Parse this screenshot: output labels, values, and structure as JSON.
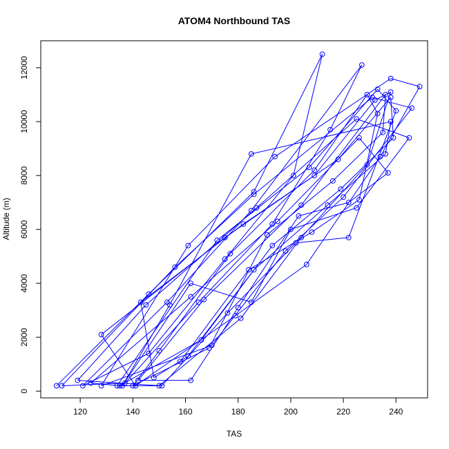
{
  "chart_data": {
    "type": "line",
    "title": "ATOM4 Northbound TAS",
    "xlabel": "TAS",
    "ylabel": "Altitude (m)",
    "xlim": [
      105,
      252
    ],
    "ylim": [
      -250,
      13000
    ],
    "x_ticks": [
      120,
      140,
      160,
      180,
      200,
      220,
      240
    ],
    "y_ticks": [
      0,
      2000,
      4000,
      6000,
      8000,
      10000,
      12000
    ],
    "grid": false,
    "legend": "none",
    "markers": "open-circle",
    "series": [
      {
        "color": "#0000ff",
        "points": [
          {
            "x": 111,
            "y": 200
          },
          {
            "x": 146,
            "y": 3600
          },
          {
            "x": 186,
            "y": 7400
          },
          {
            "x": 212,
            "y": 12500
          },
          {
            "x": 201,
            "y": 8000
          },
          {
            "x": 175,
            "y": 4900
          },
          {
            "x": 146,
            "y": 1400
          },
          {
            "x": 121,
            "y": 200
          },
          {
            "x": 153,
            "y": 3300
          },
          {
            "x": 185,
            "y": 6700
          },
          {
            "x": 227,
            "y": 12100
          },
          {
            "x": 215,
            "y": 9700
          },
          {
            "x": 193,
            "y": 6200
          },
          {
            "x": 165,
            "y": 3300
          },
          {
            "x": 137,
            "y": 300
          },
          {
            "x": 113,
            "y": 200
          },
          {
            "x": 156,
            "y": 4600
          },
          {
            "x": 186,
            "y": 7300
          },
          {
            "x": 231,
            "y": 10900
          },
          {
            "x": 246,
            "y": 10500
          },
          {
            "x": 220,
            "y": 7200
          },
          {
            "x": 198,
            "y": 5200
          },
          {
            "x": 170,
            "y": 1700
          },
          {
            "x": 128,
            "y": 200
          },
          {
            "x": 161,
            "y": 5400
          },
          {
            "x": 194,
            "y": 8700
          },
          {
            "x": 238,
            "y": 11600
          },
          {
            "x": 249,
            "y": 11300
          },
          {
            "x": 234,
            "y": 8700
          },
          {
            "x": 206,
            "y": 4700
          },
          {
            "x": 179,
            "y": 2800
          },
          {
            "x": 141,
            "y": 200
          },
          {
            "x": 128,
            "y": 2100
          },
          {
            "x": 175,
            "y": 5700
          },
          {
            "x": 209,
            "y": 8000
          },
          {
            "x": 232,
            "y": 10800
          },
          {
            "x": 238,
            "y": 11100
          },
          {
            "x": 229,
            "y": 8400
          },
          {
            "x": 204,
            "y": 5700
          },
          {
            "x": 181,
            "y": 2700
          },
          {
            "x": 150,
            "y": 200
          },
          {
            "x": 134,
            "y": 200
          },
          {
            "x": 172,
            "y": 5600
          },
          {
            "x": 207,
            "y": 8300
          },
          {
            "x": 233,
            "y": 11200
          },
          {
            "x": 240,
            "y": 10400
          },
          {
            "x": 222,
            "y": 5700
          },
          {
            "x": 202,
            "y": 5500
          },
          {
            "x": 176,
            "y": 2900
          },
          {
            "x": 151,
            "y": 200
          },
          {
            "x": 119,
            "y": 400
          },
          {
            "x": 145,
            "y": 3200
          },
          {
            "x": 187,
            "y": 6800
          },
          {
            "x": 225,
            "y": 10100
          },
          {
            "x": 245,
            "y": 9400
          },
          {
            "x": 225,
            "y": 6800
          },
          {
            "x": 200,
            "y": 6000
          },
          {
            "x": 185,
            "y": 3300
          },
          {
            "x": 162,
            "y": 4000
          },
          {
            "x": 136,
            "y": 200
          },
          {
            "x": 154,
            "y": 3200
          },
          {
            "x": 185,
            "y": 8800
          },
          {
            "x": 238,
            "y": 10000
          },
          {
            "x": 236,
            "y": 8800
          },
          {
            "x": 214,
            "y": 6900
          },
          {
            "x": 186,
            "y": 4500
          },
          {
            "x": 161,
            "y": 1300
          },
          {
            "x": 148,
            "y": 500
          },
          {
            "x": 143,
            "y": 3300
          },
          {
            "x": 182,
            "y": 6200
          },
          {
            "x": 218,
            "y": 8600
          },
          {
            "x": 238,
            "y": 10900
          },
          {
            "x": 239,
            "y": 9400
          },
          {
            "x": 219,
            "y": 7500
          },
          {
            "x": 193,
            "y": 5400
          },
          {
            "x": 166,
            "y": 1900
          },
          {
            "x": 135,
            "y": 200
          },
          {
            "x": 124,
            "y": 300
          },
          {
            "x": 162,
            "y": 3500
          },
          {
            "x": 195,
            "y": 6300
          },
          {
            "x": 226,
            "y": 9400
          },
          {
            "x": 237,
            "y": 8100
          },
          {
            "x": 222,
            "y": 7000
          },
          {
            "x": 203,
            "y": 6500
          },
          {
            "x": 180,
            "y": 3100
          },
          {
            "x": 162,
            "y": 400
          },
          {
            "x": 142,
            "y": 400
          },
          {
            "x": 167,
            "y": 3400
          },
          {
            "x": 204,
            "y": 6900
          },
          {
            "x": 236,
            "y": 11000
          },
          {
            "x": 235,
            "y": 9600
          },
          {
            "x": 216,
            "y": 7800
          },
          {
            "x": 191,
            "y": 5800
          },
          {
            "x": 169,
            "y": 1600
          },
          {
            "x": 140,
            "y": 200
          },
          {
            "x": 150,
            "y": 1500
          },
          {
            "x": 177,
            "y": 5100
          },
          {
            "x": 209,
            "y": 8200
          },
          {
            "x": 229,
            "y": 11000
          },
          {
            "x": 233,
            "y": 10300
          },
          {
            "x": 226,
            "y": 7100
          },
          {
            "x": 208,
            "y": 5900
          },
          {
            "x": 184,
            "y": 4500
          },
          {
            "x": 158,
            "y": 1100
          }
        ]
      }
    ]
  }
}
